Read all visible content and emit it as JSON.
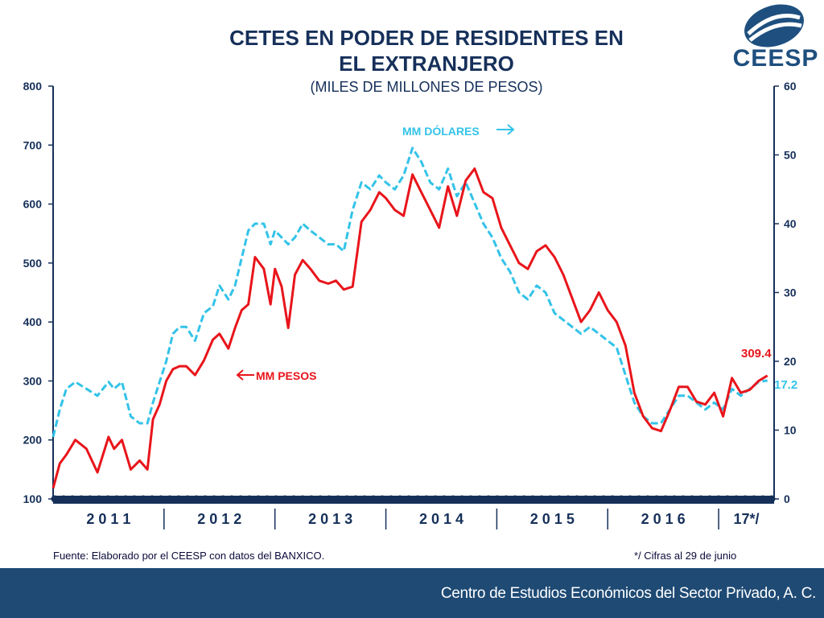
{
  "title_line1": "CETES EN PODER DE RESIDENTES EN",
  "title_line2": "EL EXTRANJERO",
  "subtitle": "(MILES DE MILLONES DE PESOS)",
  "logo_text": "CEESP",
  "source": "Fuente: Elaborado por el CEESP con datos del BANXICO.",
  "note": "*/ Cifras al 29 de junio",
  "footer": "Centro de Estudios Económicos del Sector Privado, A. C.",
  "colors": {
    "title": "#16305a",
    "pesos": "#e8151b",
    "dolares": "#33c3e8",
    "axis": "#16305a",
    "footer": "#1e4a74"
  },
  "chart_data": {
    "type": "line",
    "title": "CETES EN PODER DE RESIDENTES EN EL EXTRANJERO",
    "subtitle": "(MILES DE MILLONES DE PESOS)",
    "categories": [
      "2 0 1 1",
      "2 0 1 2",
      "2 0 1 3",
      "2 0 1 4",
      "2 0 1 5",
      "2 0 1 6",
      "17*/"
    ],
    "x_range": [
      2011.0,
      2017.5
    ],
    "y_left": {
      "min": 100,
      "max": 800,
      "ticks": [
        "100",
        "200",
        "300",
        "400",
        "500",
        "600",
        "700",
        "800"
      ]
    },
    "y_right": {
      "min": 0,
      "max": 60,
      "ticks": [
        "0",
        "10",
        "20",
        "30",
        "40",
        "50",
        "60"
      ]
    },
    "series": [
      {
        "name": "MM PESOS",
        "axis": "left",
        "label": "MM PESOS",
        "last_value_label": "309.4",
        "x": [
          2011.0,
          2011.06,
          2011.12,
          2011.2,
          2011.3,
          2011.4,
          2011.5,
          2011.55,
          2011.62,
          2011.7,
          2011.78,
          2011.85,
          2011.9,
          2011.96,
          2012.02,
          2012.08,
          2012.14,
          2012.2,
          2012.28,
          2012.36,
          2012.44,
          2012.5,
          2012.58,
          2012.64,
          2012.7,
          2012.76,
          2012.82,
          2012.9,
          2012.96,
          2013.0,
          2013.06,
          2013.12,
          2013.18,
          2013.25,
          2013.32,
          2013.4,
          2013.48,
          2013.55,
          2013.62,
          2013.7,
          2013.78,
          2013.86,
          2013.94,
          2014.0,
          2014.08,
          2014.16,
          2014.24,
          2014.32,
          2014.4,
          2014.48,
          2014.56,
          2014.64,
          2014.72,
          2014.8,
          2014.88,
          2014.96,
          2015.04,
          2015.12,
          2015.2,
          2015.28,
          2015.36,
          2015.44,
          2015.52,
          2015.6,
          2015.68,
          2015.76,
          2015.84,
          2015.92,
          2016.0,
          2016.08,
          2016.16,
          2016.24,
          2016.32,
          2016.4,
          2016.48,
          2016.56,
          2016.64,
          2016.72,
          2016.8,
          2016.88,
          2016.96,
          2017.04,
          2017.12,
          2017.2,
          2017.28,
          2017.36,
          2017.44
        ],
        "values": [
          118,
          160,
          175,
          200,
          185,
          145,
          205,
          185,
          200,
          150,
          165,
          150,
          235,
          260,
          300,
          320,
          325,
          325,
          310,
          335,
          370,
          380,
          355,
          390,
          420,
          430,
          510,
          490,
          430,
          490,
          460,
          390,
          480,
          505,
          490,
          470,
          465,
          470,
          455,
          460,
          570,
          590,
          620,
          610,
          590,
          580,
          650,
          620,
          590,
          560,
          630,
          580,
          640,
          660,
          620,
          610,
          560,
          530,
          500,
          490,
          520,
          530,
          510,
          480,
          440,
          400,
          420,
          450,
          420,
          400,
          360,
          280,
          240,
          220,
          215,
          250,
          290,
          290,
          265,
          260,
          280,
          240,
          305,
          280,
          285,
          300,
          309
        ]
      },
      {
        "name": "MM DÓLARES",
        "axis": "right",
        "label": "MM DÓLARES",
        "last_value_label": "17.2",
        "x": [
          2011.0,
          2011.06,
          2011.12,
          2011.2,
          2011.3,
          2011.4,
          2011.5,
          2011.55,
          2011.62,
          2011.7,
          2011.78,
          2011.85,
          2011.9,
          2011.96,
          2012.02,
          2012.08,
          2012.14,
          2012.2,
          2012.28,
          2012.36,
          2012.44,
          2012.5,
          2012.58,
          2012.64,
          2012.7,
          2012.76,
          2012.82,
          2012.9,
          2012.96,
          2013.0,
          2013.06,
          2013.12,
          2013.18,
          2013.25,
          2013.32,
          2013.4,
          2013.48,
          2013.55,
          2013.62,
          2013.7,
          2013.78,
          2013.86,
          2013.94,
          2014.0,
          2014.08,
          2014.16,
          2014.24,
          2014.32,
          2014.4,
          2014.48,
          2014.56,
          2014.64,
          2014.72,
          2014.8,
          2014.88,
          2014.96,
          2015.04,
          2015.12,
          2015.2,
          2015.28,
          2015.36,
          2015.44,
          2015.52,
          2015.6,
          2015.68,
          2015.76,
          2015.84,
          2015.92,
          2016.0,
          2016.08,
          2016.16,
          2016.24,
          2016.32,
          2016.4,
          2016.48,
          2016.56,
          2016.64,
          2016.72,
          2016.8,
          2016.88,
          2016.96,
          2017.04,
          2017.12,
          2017.2,
          2017.28,
          2017.36,
          2017.44
        ],
        "values": [
          9,
          13,
          16,
          17,
          16,
          15,
          17,
          16,
          17,
          12,
          11,
          11,
          14,
          17,
          20,
          24,
          25,
          25,
          23,
          27,
          28,
          31,
          29,
          31,
          35,
          39,
          40,
          40,
          37,
          39,
          38,
          37,
          38,
          40,
          39,
          38,
          37,
          37,
          36,
          42,
          46,
          45,
          47,
          46,
          45,
          47,
          51,
          49,
          46,
          45,
          48,
          44,
          46,
          43,
          40,
          38,
          35,
          33,
          30,
          29,
          31,
          30,
          27,
          26,
          25,
          24,
          25,
          24,
          23,
          22,
          18,
          14,
          12,
          11,
          11,
          13,
          15,
          15,
          14,
          13,
          14,
          13,
          16,
          15,
          16,
          17,
          17.2
        ]
      }
    ]
  }
}
